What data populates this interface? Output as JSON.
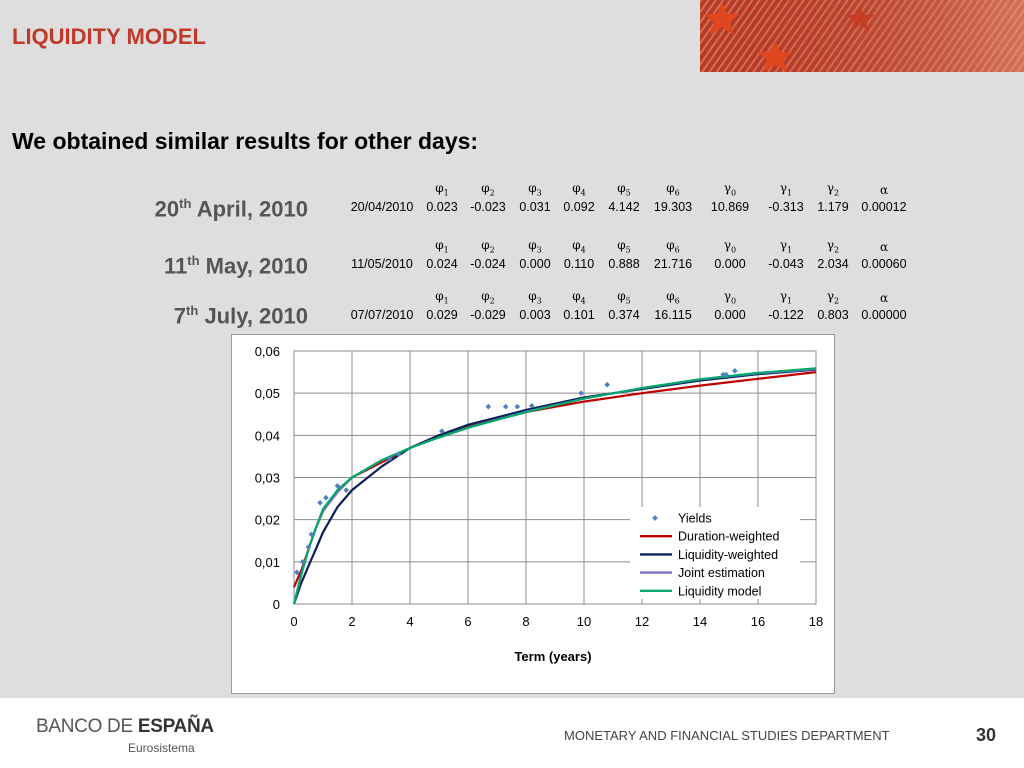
{
  "slide": {
    "title": "LIQUIDITY MODEL",
    "subtitle": "We obtained similar results for other days:"
  },
  "param_headers": [
    {
      "sym": "φ",
      "sub": "1"
    },
    {
      "sym": "φ",
      "sub": "2"
    },
    {
      "sym": "φ",
      "sub": "3"
    },
    {
      "sym": "φ",
      "sub": "4"
    },
    {
      "sym": "φ",
      "sub": "5"
    },
    {
      "sym": "φ",
      "sub": "6"
    },
    {
      "sym": "γ",
      "sub": "0"
    },
    {
      "sym": "γ",
      "sub": "1"
    },
    {
      "sym": "γ",
      "sub": "2"
    },
    {
      "sym": "α",
      "sub": ""
    }
  ],
  "dates": [
    {
      "num": "20",
      "suffix": "th",
      "rest": " April, 2010",
      "row": [
        "20/04/2010",
        "0.023",
        "-0.023",
        "0.031",
        "0.092",
        "4.142",
        "19.303",
        "10.869",
        "-0.313",
        "1.179",
        "0.00012"
      ]
    },
    {
      "num": "11",
      "suffix": "th",
      "rest": " May, 2010",
      "row": [
        "11/05/2010",
        "0.024",
        "-0.024",
        "0.000",
        "0.110",
        "0.888",
        "21.716",
        "0.000",
        "-0.043",
        "2.034",
        "0.00060"
      ]
    },
    {
      "num": "7",
      "suffix": "th",
      "rest": " July, 2010",
      "row": [
        "07/07/2010",
        "0.029",
        "-0.029",
        "0.003",
        "0.101",
        "0.374",
        "16.115",
        "0.000",
        "-0.122",
        "0.803",
        "0.00000"
      ]
    }
  ],
  "chart_data": {
    "type": "line",
    "xlabel": "Term (years)",
    "ylabel": "",
    "xlim": [
      0,
      18
    ],
    "ylim": [
      0,
      0.06
    ],
    "xticks": [
      "0",
      "2",
      "4",
      "6",
      "8",
      "10",
      "12",
      "14",
      "16",
      "18"
    ],
    "yticks": [
      "0",
      "0,01",
      "0,02",
      "0,03",
      "0,04",
      "0,05",
      "0,06"
    ],
    "grid": true,
    "legend_position": "bottom-right",
    "scatter": {
      "name": "Yields",
      "color": "#4f81bd",
      "x": [
        0.1,
        0.3,
        0.5,
        0.6,
        0.9,
        1.1,
        1.5,
        1.8,
        3.3,
        3.6,
        5.1,
        6.7,
        7.3,
        7.7,
        8.2,
        9.9,
        10.8,
        14.8,
        14.9,
        15.2
      ],
      "y": [
        0.0075,
        0.01,
        0.0135,
        0.0165,
        0.024,
        0.0252,
        0.028,
        0.027,
        0.0345,
        0.0355,
        0.041,
        0.0468,
        0.0468,
        0.0468,
        0.047,
        0.05,
        0.052,
        0.0544,
        0.0544,
        0.0553
      ]
    },
    "series": [
      {
        "name": "Duration-weighted",
        "color": "#c00000",
        "x": [
          0,
          0.25,
          0.5,
          0.75,
          1,
          1.5,
          2,
          3,
          4,
          5,
          6,
          8,
          10,
          12,
          14,
          16,
          18
        ],
        "y": [
          0.004,
          0.008,
          0.013,
          0.018,
          0.022,
          0.027,
          0.03,
          0.0335,
          0.037,
          0.04,
          0.042,
          0.0455,
          0.048,
          0.05,
          0.0518,
          0.0534,
          0.055
        ]
      },
      {
        "name": "Liquidity-weighted",
        "color": "#0a1f5c",
        "x": [
          0,
          0.25,
          0.5,
          0.75,
          1,
          1.5,
          2,
          3,
          4,
          5,
          6,
          8,
          10,
          12,
          14,
          16,
          18
        ],
        "y": [
          0,
          0.005,
          0.009,
          0.013,
          0.017,
          0.023,
          0.027,
          0.0325,
          0.037,
          0.04,
          0.0425,
          0.046,
          0.049,
          0.051,
          0.053,
          0.0545,
          0.0556
        ]
      },
      {
        "name": "Joint estimation",
        "color": "#7f6fc9",
        "x": [
          0,
          0.25,
          0.5,
          0.75,
          1,
          1.5,
          2,
          3,
          4,
          5,
          6,
          8,
          10,
          12,
          14,
          16,
          18
        ],
        "y": [
          0,
          0.007,
          0.013,
          0.018,
          0.022,
          0.0265,
          0.03,
          0.034,
          0.037,
          0.0395,
          0.0418,
          0.0456,
          0.0487,
          0.0512,
          0.0533,
          0.0547,
          0.0557
        ]
      },
      {
        "name": "Liquidity model",
        "color": "#00a86b",
        "x": [
          0,
          0.25,
          0.5,
          0.75,
          1,
          1.5,
          2,
          3,
          4,
          5,
          6,
          8,
          10,
          12,
          14,
          16,
          18
        ],
        "y": [
          0,
          0.007,
          0.013,
          0.018,
          0.0225,
          0.027,
          0.03,
          0.034,
          0.037,
          0.0395,
          0.0418,
          0.0455,
          0.0487,
          0.0512,
          0.0533,
          0.0548,
          0.0559
        ]
      }
    ]
  },
  "footer": {
    "logo_left": "BANCO DE ",
    "logo_right": "ESPAÑA",
    "logo_sub": "Eurosistema",
    "department": "MONETARY AND FINANCIAL STUDIES DEPARTMENT",
    "page": "30"
  },
  "colors": {
    "title": "#c0392b",
    "flag": "#c0392b"
  }
}
